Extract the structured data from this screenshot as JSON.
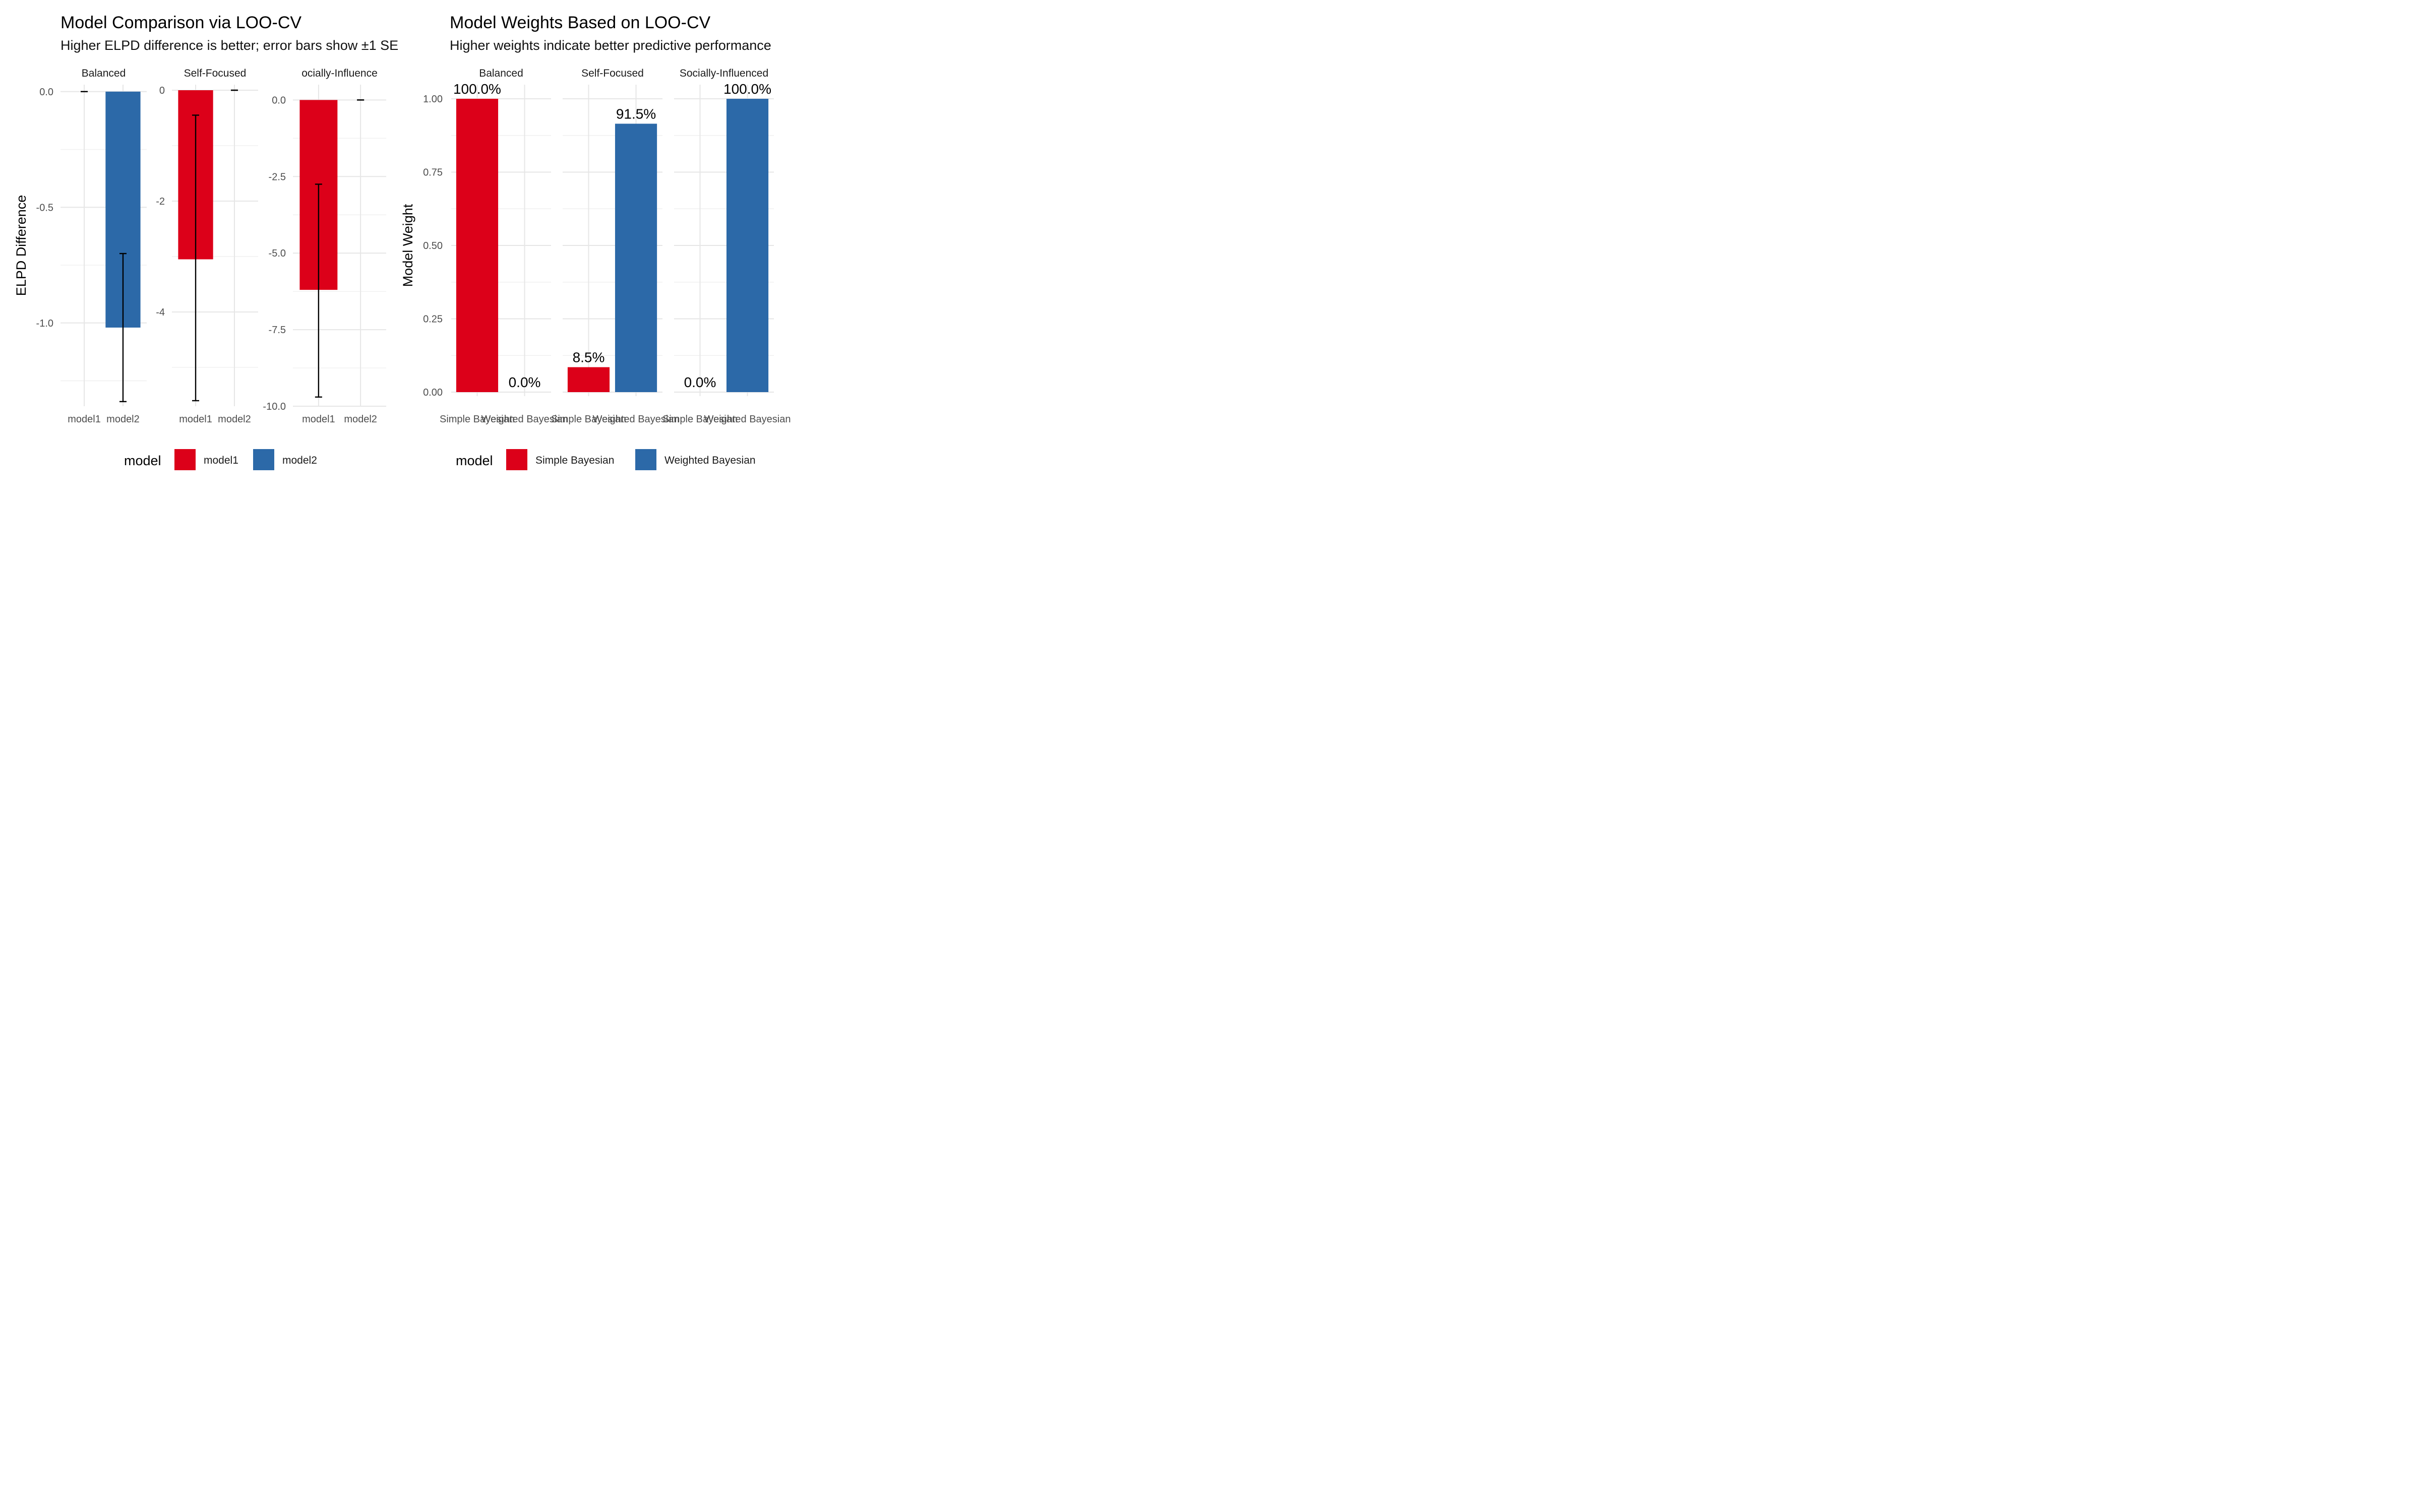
{
  "left": {
    "title": "Model Comparison via LOO-CV",
    "subtitle": "Higher ELPD difference is better; error bars show ±1 SE",
    "ylabel": "ELPD Difference",
    "legend_title": "model",
    "legend": [
      {
        "label": "model1",
        "color": "#dc0019"
      },
      {
        "label": "model2",
        "color": "#2c69a8"
      }
    ]
  },
  "right": {
    "title": "Model Weights Based on LOO-CV",
    "subtitle": "Higher weights indicate better predictive performance",
    "ylabel": "Model Weight",
    "legend_title": "model",
    "legend": [
      {
        "label": "Simple Bayesian",
        "color": "#dc0019"
      },
      {
        "label": "Weighted Bayesian",
        "color": "#2c69a8"
      }
    ]
  },
  "chart_data": [
    {
      "type": "bar",
      "title": "Model Comparison via LOO-CV",
      "subtitle": "Higher ELPD difference is better; error bars show ±1 SE",
      "ylabel": "ELPD Difference",
      "xlabel": "",
      "categories": [
        "model1",
        "model2"
      ],
      "grid": true,
      "legend_position": "bottom",
      "facets": [
        {
          "strip": "Balanced",
          "ylim": [
            -1.36,
            0.03
          ],
          "yticks": [
            0.0,
            -0.5,
            -1.0
          ],
          "ytick_labels": [
            "0.0",
            "-0.5",
            "-1.0"
          ],
          "values": [
            0.0,
            -1.02
          ],
          "se_low": [
            0.0,
            -1.34
          ],
          "se_high": [
            0.0,
            -0.7
          ]
        },
        {
          "strip": "Self-Focused",
          "ylim": [
            -5.7,
            0.1
          ],
          "yticks": [
            0,
            -2,
            -4
          ],
          "ytick_labels": [
            "0",
            "-2",
            "-4"
          ],
          "values": [
            -3.05,
            0.0
          ],
          "se_low": [
            -5.6,
            0.0
          ],
          "se_high": [
            -0.45,
            0.0
          ]
        },
        {
          "strip": "ocially-Influence",
          "ylim": [
            -10.0,
            0.5
          ],
          "yticks": [
            0.0,
            -2.5,
            -5.0,
            -7.5,
            -10.0
          ],
          "ytick_labels": [
            "0.0",
            "-2.5",
            "-5.0",
            "-7.5",
            "-10.0"
          ],
          "values": [
            -6.2,
            0.0
          ],
          "se_low": [
            -9.7,
            0.0
          ],
          "se_high": [
            -2.75,
            0.0
          ]
        }
      ]
    },
    {
      "type": "bar",
      "title": "Model Weights Based on LOO-CV",
      "subtitle": "Higher weights indicate better predictive performance",
      "ylabel": "Model Weight",
      "xlabel": "",
      "categories": [
        "Simple Bayesian",
        "Weighted Bayesian"
      ],
      "ylim": [
        0,
        1.0
      ],
      "yticks": [
        0.0,
        0.25,
        0.5,
        0.75,
        1.0
      ],
      "ytick_labels": [
        "0.00",
        "0.25",
        "0.50",
        "0.75",
        "1.00"
      ],
      "grid": true,
      "legend_position": "bottom",
      "facets": [
        {
          "strip": "Balanced",
          "values": [
            1.0,
            0.0
          ],
          "labels": [
            "100.0%",
            "0.0%"
          ]
        },
        {
          "strip": "Self-Focused",
          "values": [
            0.085,
            0.915
          ],
          "labels": [
            "8.5%",
            "91.5%"
          ]
        },
        {
          "strip": "Socially-Influenced",
          "values": [
            0.0,
            1.0
          ],
          "labels": [
            "0.0%",
            "100.0%"
          ]
        }
      ]
    }
  ]
}
